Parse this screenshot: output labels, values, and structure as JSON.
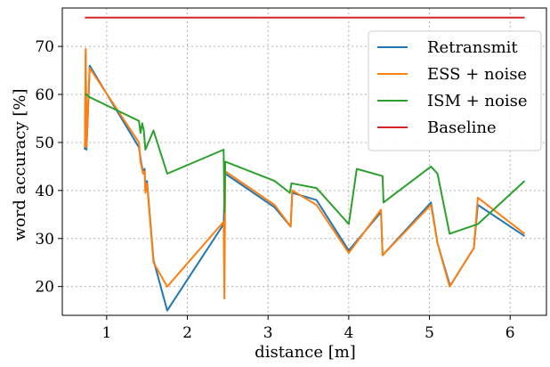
{
  "chart_data": {
    "type": "line",
    "title": "",
    "xlabel": "distance [m]",
    "ylabel": "word accuracy [%]",
    "xlim": [
      0.45,
      6.45
    ],
    "ylim": [
      14,
      78
    ],
    "xticks": [
      1,
      2,
      3,
      4,
      5,
      6
    ],
    "yticks": [
      20,
      30,
      40,
      50,
      60,
      70
    ],
    "grid": true,
    "legend_position": "top-right",
    "series": [
      {
        "name": "Retransmit",
        "color": "#1f77b4",
        "x": [
          0.73,
          0.74,
          0.75,
          0.79,
          1.4,
          1.43,
          1.45,
          1.47,
          1.48,
          1.5,
          1.58,
          1.75,
          2.45,
          2.47,
          3.08,
          3.28,
          3.3,
          3.6,
          4.0,
          4.4,
          4.42,
          5.02,
          5.1,
          5.25,
          5.27,
          5.55,
          5.6,
          6.18
        ],
        "y": [
          48.5,
          69.0,
          48.5,
          66.0,
          49.0,
          45.5,
          44.0,
          44.5,
          40.0,
          42.0,
          25.5,
          15.0,
          33.0,
          43.5,
          36.5,
          32.5,
          39.5,
          38.0,
          27.5,
          35.5,
          26.5,
          37.5,
          29.0,
          20.5,
          20.5,
          28.0,
          37.0,
          30.5
        ]
      },
      {
        "name": "ESS + noise",
        "color": "#ff7f0e",
        "x": [
          0.73,
          0.74,
          0.75,
          0.79,
          1.4,
          1.42,
          1.45,
          1.47,
          1.48,
          1.5,
          1.58,
          1.75,
          2.45,
          2.46,
          2.47,
          3.08,
          3.28,
          3.3,
          3.6,
          4.0,
          4.4,
          4.42,
          5.02,
          5.1,
          5.25,
          5.27,
          5.55,
          5.6,
          6.18
        ],
        "y": [
          49.0,
          69.5,
          49.0,
          65.5,
          50.0,
          46.0,
          43.5,
          44.0,
          39.5,
          41.5,
          25.0,
          20.0,
          33.5,
          17.5,
          44.0,
          37.0,
          32.5,
          40.0,
          37.0,
          27.0,
          36.0,
          26.5,
          37.0,
          29.0,
          20.0,
          20.5,
          28.0,
          38.5,
          31.0
        ]
      },
      {
        "name": "ISM + noise",
        "color": "#2ca02c",
        "x": [
          0.73,
          0.75,
          0.78,
          1.4,
          1.42,
          1.44,
          1.46,
          1.48,
          1.58,
          1.75,
          2.45,
          2.46,
          2.47,
          3.08,
          3.27,
          3.29,
          3.6,
          4.0,
          4.1,
          4.42,
          4.43,
          5.02,
          5.1,
          5.25,
          5.6,
          6.18
        ],
        "y": [
          60.0,
          60.0,
          59.5,
          54.5,
          52.0,
          54.0,
          52.5,
          48.5,
          52.5,
          43.5,
          48.5,
          35.5,
          46.0,
          42.0,
          39.5,
          41.5,
          40.5,
          33.0,
          44.5,
          43.0,
          37.5,
          45.0,
          43.5,
          31.0,
          33.0,
          42.0
        ]
      },
      {
        "name": "Baseline",
        "color": "#d62728",
        "x": [
          0.73,
          6.18
        ],
        "y": [
          76.0,
          76.0
        ]
      }
    ]
  }
}
